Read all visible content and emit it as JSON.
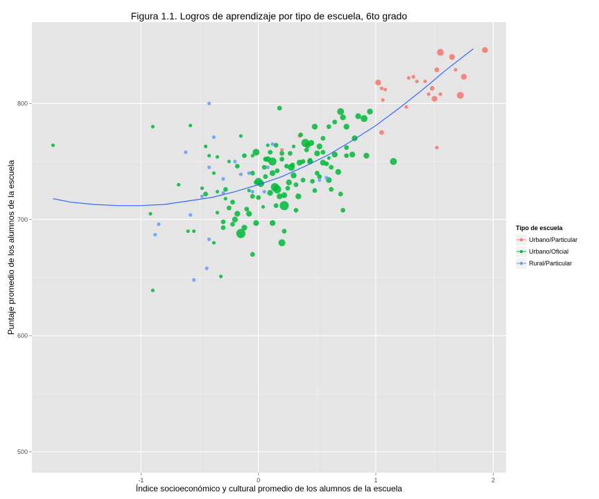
{
  "chart_data": {
    "type": "scatter",
    "title": "Figura 1.1. Logros de aprendizaje por tipo de escuela, 6to grado",
    "xlabel": "Índice socioeconómico y cultural promedio de los alumnos de la escuela",
    "ylabel": "Puntaje promedio de los alumnos de la escuela",
    "xlim": [
      -1.93,
      2.11
    ],
    "ylim": [
      482,
      870
    ],
    "x_ticks": [
      -1,
      0,
      1,
      2
    ],
    "x_tick_labels": [
      "-1",
      "0",
      "1",
      "2"
    ],
    "y_ticks": [
      500,
      600,
      700,
      800
    ],
    "y_tick_labels": [
      "500",
      "600",
      "700",
      "800"
    ],
    "grid": true,
    "legend": {
      "title": "Tipo de escuela",
      "position": "right"
    },
    "series": [
      {
        "name": "Urbano/Particular",
        "color": "#F8766D",
        "points": [
          [
            1.02,
            818,
            2
          ],
          [
            1.05,
            813,
            1
          ],
          [
            1.08,
            812,
            1
          ],
          [
            1.06,
            803,
            1
          ],
          [
            1.05,
            775,
            1.5
          ],
          [
            1.26,
            797,
            1
          ],
          [
            1.28,
            822,
            1
          ],
          [
            1.32,
            823,
            1
          ],
          [
            1.35,
            819,
            1
          ],
          [
            1.42,
            819,
            1
          ],
          [
            1.45,
            808,
            1
          ],
          [
            1.48,
            813,
            1.5
          ],
          [
            1.5,
            804,
            2
          ],
          [
            1.52,
            829,
            1.5
          ],
          [
            1.55,
            808,
            1
          ],
          [
            1.52,
            762,
            1
          ],
          [
            1.55,
            844,
            2.5
          ],
          [
            1.65,
            840,
            2
          ],
          [
            1.68,
            829,
            1
          ],
          [
            1.72,
            807,
            2.5
          ],
          [
            1.75,
            823,
            2
          ],
          [
            1.93,
            846,
            2
          ],
          [
            0.35,
            772,
            1
          ],
          [
            0.2,
            760,
            1
          ]
        ]
      },
      {
        "name": "Urbano/Oficial",
        "color": "#00BA38",
        "points": [
          [
            -1.75,
            764,
            1
          ],
          [
            -0.9,
            780,
            1
          ],
          [
            -0.58,
            781,
            1
          ],
          [
            -0.9,
            639,
            1
          ],
          [
            -0.92,
            705,
            1
          ],
          [
            -0.68,
            730,
            1
          ],
          [
            -0.55,
            690,
            1
          ],
          [
            -0.45,
            763,
            1
          ],
          [
            -0.42,
            755,
            1
          ],
          [
            -0.35,
            754,
            1
          ],
          [
            -0.48,
            727,
            1
          ],
          [
            -0.45,
            722,
            1.5
          ],
          [
            -0.38,
            740,
            1
          ],
          [
            -0.35,
            724,
            1
          ],
          [
            -0.38,
            680,
            1
          ],
          [
            -0.3,
            698,
            1.5
          ],
          [
            -0.28,
            718,
            1
          ],
          [
            -0.35,
            706,
            1
          ],
          [
            -0.32,
            651,
            1
          ],
          [
            -0.25,
            750,
            1
          ],
          [
            -0.22,
            715,
            1.5
          ],
          [
            -0.2,
            700,
            2
          ],
          [
            -0.18,
            746,
            1.5
          ],
          [
            -0.15,
            772,
            1
          ],
          [
            -0.15,
            688,
            3.5
          ],
          [
            -0.12,
            693,
            2
          ],
          [
            -0.1,
            709,
            1.5
          ],
          [
            -0.08,
            725,
            1
          ],
          [
            -0.05,
            755,
            1
          ],
          [
            -0.05,
            740,
            1.5
          ],
          [
            -0.02,
            758,
            2.5
          ],
          [
            0,
            733,
            2.5
          ],
          [
            0,
            719,
            1.5
          ],
          [
            -0.02,
            697,
            2
          ],
          [
            0.02,
            731,
            2.5
          ],
          [
            0.04,
            711,
            1
          ],
          [
            0.06,
            752,
            1.5
          ],
          [
            0.08,
            764,
            1
          ],
          [
            0.1,
            723,
            2
          ],
          [
            0.12,
            750,
            3
          ],
          [
            0.14,
            728,
            3
          ],
          [
            0.15,
            712,
            1.5
          ],
          [
            0.16,
            742,
            1.5
          ],
          [
            0.18,
            796,
            1.5
          ],
          [
            0.2,
            757,
            1.5
          ],
          [
            0.22,
            721,
            2
          ],
          [
            0.22,
            690,
            1.5
          ],
          [
            0.24,
            746,
            1.5
          ],
          [
            0.26,
            732,
            2
          ],
          [
            0.28,
            745,
            2.5
          ],
          [
            0.3,
            763,
            1
          ],
          [
            0.32,
            730,
            1.5
          ],
          [
            0.34,
            720,
            2
          ],
          [
            0.36,
            773,
            1.5
          ],
          [
            0.35,
            749,
            2
          ],
          [
            0.38,
            734,
            1.5
          ],
          [
            0.4,
            766,
            3
          ],
          [
            0.42,
            764,
            2
          ],
          [
            0.44,
            750,
            2
          ],
          [
            0.46,
            733,
            1.5
          ],
          [
            0.48,
            725,
            1.5
          ],
          [
            0.5,
            757,
            2
          ],
          [
            0.5,
            740,
            1.5
          ],
          [
            0.52,
            763,
            2
          ],
          [
            0.52,
            737,
            1.5
          ],
          [
            0.55,
            749,
            2
          ],
          [
            0.58,
            748,
            1.5
          ],
          [
            0.6,
            734,
            2
          ],
          [
            0.62,
            726,
            1.5
          ],
          [
            0.65,
            756,
            2
          ],
          [
            0.68,
            741,
            2
          ],
          [
            0.7,
            793,
            2.5
          ],
          [
            0.72,
            788,
            2
          ],
          [
            0.75,
            780,
            2
          ],
          [
            0.75,
            755,
            1.5
          ],
          [
            0.8,
            756,
            2
          ],
          [
            0.82,
            770,
            2
          ],
          [
            0.85,
            789,
            2
          ],
          [
            0.9,
            787,
            2.5
          ],
          [
            0.92,
            755,
            2
          ],
          [
            0.95,
            793,
            2
          ],
          [
            1.15,
            750,
            2.5
          ],
          [
            0.55,
            758,
            1.5
          ],
          [
            0.6,
            753,
            1
          ],
          [
            0.62,
            745,
            1.5
          ],
          [
            0.65,
            784,
            1.5
          ],
          [
            0.48,
            780,
            2
          ],
          [
            0.44,
            751,
            1.5
          ],
          [
            0.41,
            760,
            1.5
          ],
          [
            0.38,
            750,
            1.5
          ],
          [
            0.3,
            738,
            2
          ],
          [
            0.29,
            747,
            1.5
          ],
          [
            0.27,
            757,
            1.5
          ],
          [
            0.25,
            727,
            1.5
          ],
          [
            0.22,
            712,
            3.5
          ],
          [
            0.2,
            752,
            1.5
          ],
          [
            0.18,
            720,
            2
          ],
          [
            0.16,
            726,
            3
          ],
          [
            0.12,
            740,
            2
          ],
          [
            0.08,
            752,
            2
          ],
          [
            0.06,
            737,
            1.5
          ],
          [
            -0.05,
            670,
            1.5
          ],
          [
            -0.05,
            720,
            1.5
          ],
          [
            -0.08,
            705,
            2
          ],
          [
            -0.12,
            755,
            1.5
          ],
          [
            -0.02,
            732,
            1.5
          ],
          [
            -0.18,
            705,
            2
          ],
          [
            -0.22,
            696,
            1.5
          ],
          [
            -0.25,
            710,
            1.5
          ],
          [
            -0.28,
            726,
            1.5
          ],
          [
            0.15,
            764,
            1.5
          ],
          [
            0.1,
            758,
            1.5
          ],
          [
            0.05,
            745,
            1.5
          ],
          [
            0.12,
            697,
            2
          ],
          [
            0.2,
            680,
            2.5
          ],
          [
            0.7,
            722,
            1.5
          ],
          [
            0.72,
            708,
            1.5
          ],
          [
            0.75,
            762,
            1.5
          ],
          [
            0.45,
            766,
            2
          ],
          [
            0.55,
            770,
            1.5
          ],
          [
            -0.6,
            690,
            1
          ],
          [
            -0.3,
            693,
            1.5
          ],
          [
            0.32,
            708,
            1.5
          ],
          [
            0.6,
            780,
            1.5
          ]
        ]
      },
      {
        "name": "Rural/Particular",
        "color": "#619CFF",
        "points": [
          [
            -0.42,
            800,
            1
          ],
          [
            -0.38,
            771,
            1
          ],
          [
            -0.62,
            758,
            1
          ],
          [
            -0.42,
            745,
            1
          ],
          [
            -0.08,
            740,
            1
          ],
          [
            -0.3,
            735,
            1
          ],
          [
            -0.58,
            704,
            1
          ],
          [
            -0.85,
            696,
            1
          ],
          [
            -0.88,
            687,
            1
          ],
          [
            -0.42,
            683,
            1
          ],
          [
            -0.44,
            658,
            1
          ],
          [
            -0.55,
            648,
            1
          ],
          [
            -0.3,
            723,
            1
          ],
          [
            -0.15,
            739,
            1
          ],
          [
            0.05,
            724,
            1
          ],
          [
            0.08,
            745,
            1
          ],
          [
            0.12,
            765,
            1
          ],
          [
            0.52,
            734,
            1
          ],
          [
            0.58,
            736,
            1
          ],
          [
            -0.2,
            750,
            1
          ],
          [
            -0.48,
            720,
            1
          ],
          [
            -0.05,
            724,
            1
          ]
        ]
      }
    ],
    "trend_line": {
      "name": "tendencia",
      "color": "#3366FF",
      "x": [
        -1.75,
        -1.6,
        -1.4,
        -1.2,
        -1.0,
        -0.8,
        -0.6,
        -0.4,
        -0.2,
        0,
        0.2,
        0.4,
        0.6,
        0.8,
        1.0,
        1.2,
        1.4,
        1.6,
        1.83
      ],
      "y": [
        718,
        715,
        713,
        712,
        712,
        713,
        716,
        719,
        724,
        730,
        737,
        746,
        756,
        768,
        781,
        796,
        812,
        829,
        847
      ]
    }
  }
}
